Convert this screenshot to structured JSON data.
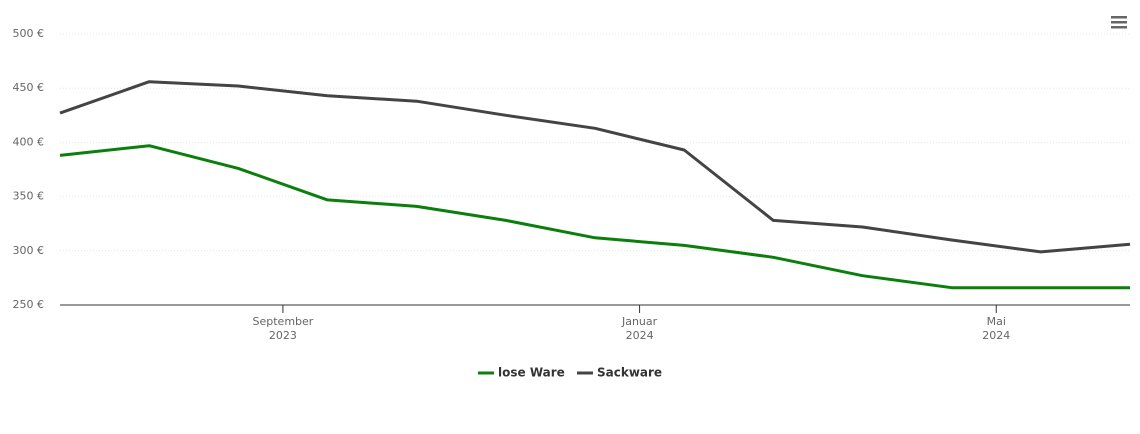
{
  "chart_data": {
    "type": "line",
    "x": [
      "2023-06",
      "2023-07",
      "2023-08",
      "2023-09",
      "2023-10",
      "2023-11",
      "2023-12",
      "2024-01",
      "2024-02",
      "2024-03",
      "2024-04",
      "2024-05",
      "2024-06"
    ],
    "series": [
      {
        "name": "lose Ware",
        "color": "#0b7f0b",
        "values": [
          388,
          397,
          376,
          347,
          341,
          328,
          312,
          305,
          294,
          277,
          266,
          266,
          266
        ]
      },
      {
        "name": "Sackware",
        "color": "#444444",
        "values": [
          427,
          456,
          452,
          443,
          438,
          425,
          413,
          393,
          328,
          322,
          310,
          299,
          306
        ]
      }
    ],
    "ylim": [
      250,
      500
    ],
    "yticks": [
      {
        "value": 250,
        "label": "250 €"
      },
      {
        "value": 300,
        "label": "300 €"
      },
      {
        "value": 350,
        "label": "350 €"
      },
      {
        "value": 400,
        "label": "400 €"
      },
      {
        "value": 450,
        "label": "450 €"
      },
      {
        "value": 500,
        "label": "500 €"
      }
    ],
    "xticks": [
      {
        "value": "2023-09",
        "label": "September",
        "year": "2023"
      },
      {
        "value": "2024-01",
        "label": "Januar",
        "year": "2024"
      },
      {
        "value": "2024-05",
        "label": "Mai",
        "year": "2024"
      }
    ],
    "grid": true
  }
}
